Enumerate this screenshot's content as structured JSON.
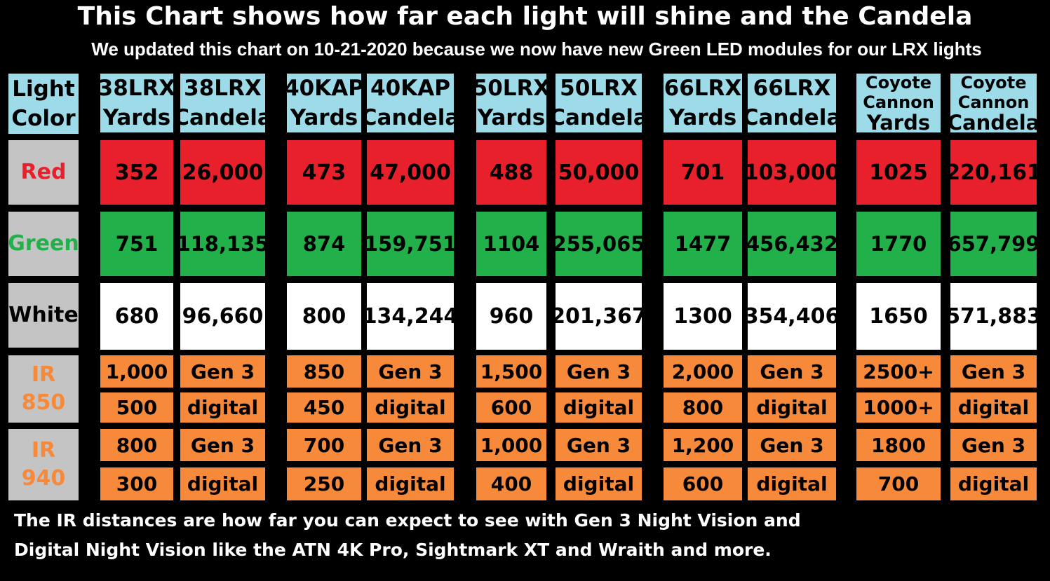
{
  "title": "This Chart shows how far each light will shine and the Candela",
  "subtitle": "We updated this chart on 10-21-2020 because we now have new Green LED modules for our LRX lights",
  "colors": {
    "background": "#000000",
    "header": "#9edbe8",
    "label_bg": "#c4c4c4",
    "red": "#e8202b",
    "green": "#22b04b",
    "white": "#ffffff",
    "ir": "#f6893a",
    "red_text": "#e8202b",
    "green_text": "#22b04b",
    "ir_text": "#f6893a"
  },
  "header_label": [
    "Light",
    "Color"
  ],
  "columns": [
    {
      "lines": [
        "38LRX",
        "Yards"
      ]
    },
    {
      "lines": [
        "38LRX",
        "Candela"
      ]
    },
    {
      "lines": [
        "40KAP",
        "Yards"
      ]
    },
    {
      "lines": [
        "40KAP",
        "Candela"
      ]
    },
    {
      "lines": [
        "50LRX",
        "Yards"
      ]
    },
    {
      "lines": [
        "50LRX",
        "Candela"
      ]
    },
    {
      "lines": [
        "66LRX",
        "Yards"
      ]
    },
    {
      "lines": [
        "66LRX",
        "Candela"
      ]
    },
    {
      "lines": [
        "Coyote",
        "Cannon",
        "Yards"
      ]
    },
    {
      "lines": [
        "Coyote",
        "Cannon",
        "Candela"
      ]
    }
  ],
  "row_labels": {
    "red": "Red",
    "green": "Green",
    "white": "White",
    "ir850": [
      "IR",
      "850"
    ],
    "ir940": [
      "IR",
      "940"
    ]
  },
  "rows": {
    "red": [
      "352",
      "26,000",
      "473",
      "47,000",
      "488",
      "50,000",
      "701",
      "103,000",
      "1025",
      "220,161"
    ],
    "green": [
      "751",
      "118,135",
      "874",
      "159,751",
      "1104",
      "255,065",
      "1477",
      "456,432",
      "1770",
      "657,799"
    ],
    "white": [
      "680",
      "96,660",
      "800",
      "134,244",
      "960",
      "201,367",
      "1300",
      "354,406",
      "1650",
      "571,883"
    ],
    "ir850_a": [
      "1,000",
      "Gen 3",
      "850",
      "Gen 3",
      "1,500",
      "Gen 3",
      "2,000",
      "Gen 3",
      "2500+",
      "Gen 3"
    ],
    "ir850_b": [
      "500",
      "digital",
      "450",
      "digital",
      "600",
      "digital",
      "800",
      "digital",
      "1000+",
      "digital"
    ],
    "ir940_a": [
      "800",
      "Gen 3",
      "700",
      "Gen 3",
      "1,000",
      "Gen 3",
      "1,200",
      "Gen 3",
      "1800",
      "Gen 3"
    ],
    "ir940_b": [
      "300",
      "digital",
      "250",
      "digital",
      "400",
      "digital",
      "600",
      "digital",
      "700",
      "digital"
    ]
  },
  "footnote": [
    "The IR distances are how far you can expect to see with Gen 3 Night Vision and",
    "Digital Night Vision like the ATN 4K Pro, Sightmark XT and Wraith and more."
  ],
  "chart_data": {
    "type": "table",
    "title": "This Chart shows how far each light will shine and the Candela",
    "subtitle": "We updated this chart on 10-21-2020 because we now have new Green LED modules for our LRX lights",
    "columns": [
      "Light Color",
      "38LRX Yards",
      "38LRX Candela",
      "40KAP Yards",
      "40KAP Candela",
      "50LRX Yards",
      "50LRX Candela",
      "66LRX Yards",
      "66LRX Candela",
      "Coyote Cannon Yards",
      "Coyote Cannon Candela"
    ],
    "rows": [
      [
        "Red",
        "352",
        "26,000",
        "473",
        "47,000",
        "488",
        "50,000",
        "701",
        "103,000",
        "1025",
        "220,161"
      ],
      [
        "Green",
        "751",
        "118,135",
        "874",
        "159,751",
        "1104",
        "255,065",
        "1477",
        "456,432",
        "1770",
        "657,799"
      ],
      [
        "White",
        "680",
        "96,660",
        "800",
        "134,244",
        "960",
        "201,367",
        "1300",
        "354,406",
        "1650",
        "571,883"
      ],
      [
        "IR 850",
        "1,000",
        "Gen 3",
        "850",
        "Gen 3",
        "1,500",
        "Gen 3",
        "2,000",
        "Gen 3",
        "2500+",
        "Gen 3"
      ],
      [
        "IR 850",
        "500",
        "digital",
        "450",
        "digital",
        "600",
        "digital",
        "800",
        "digital",
        "1000+",
        "digital"
      ],
      [
        "IR 940",
        "800",
        "Gen 3",
        "700",
        "Gen 3",
        "1,000",
        "Gen 3",
        "1,200",
        "Gen 3",
        "1800",
        "Gen 3"
      ],
      [
        "IR 940",
        "300",
        "digital",
        "250",
        "digital",
        "400",
        "digital",
        "600",
        "digital",
        "700",
        "digital"
      ]
    ]
  }
}
